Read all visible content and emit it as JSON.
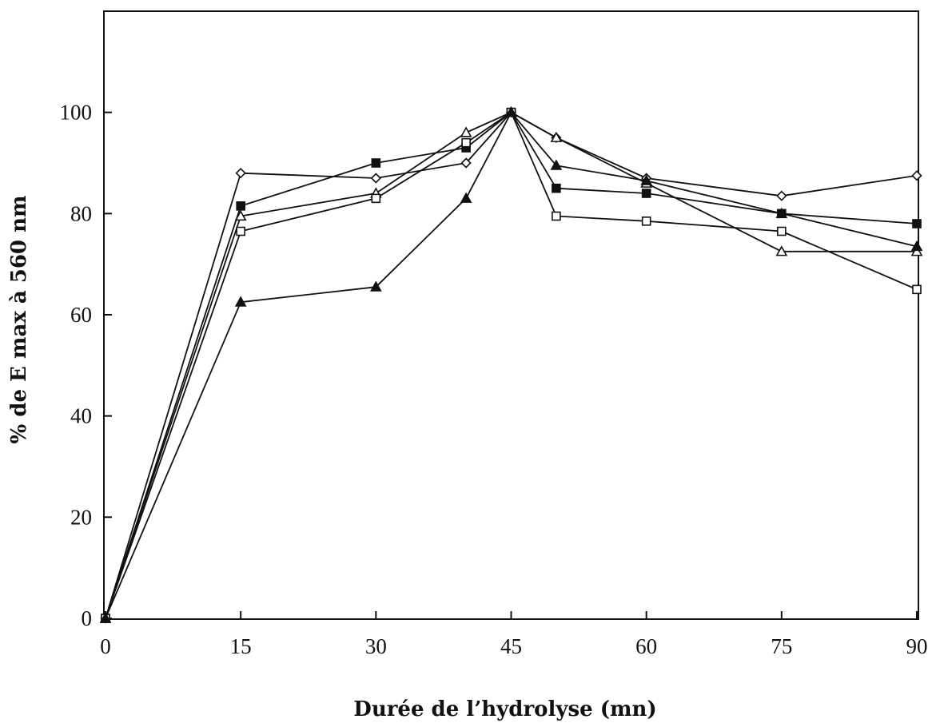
{
  "chart_data": {
    "type": "line",
    "title": "",
    "xlabel": "Durée de l’hydrolyse (mn)",
    "ylabel": "% de E max à 560 nm",
    "xlim": [
      0,
      90
    ],
    "ylim": [
      0,
      120
    ],
    "x_ticks": [
      0,
      15,
      30,
      45,
      60,
      75,
      90
    ],
    "y_ticks": [
      0,
      20,
      40,
      60,
      80,
      100
    ],
    "x_tick_labels": [
      "0",
      "15",
      "30",
      "45",
      "60",
      "75",
      "90"
    ],
    "y_tick_labels": [
      "0",
      "20",
      "40",
      "60",
      "80",
      "100"
    ],
    "grid": false,
    "legend": "none",
    "series": [
      {
        "marker": "open-diamond",
        "x": [
          0,
          15,
          30,
          40,
          45,
          50,
          60,
          75,
          90
        ],
        "y": [
          0,
          88,
          87,
          90,
          100,
          95,
          87,
          83.5,
          87.5
        ]
      },
      {
        "marker": "filled-square",
        "x": [
          0,
          15,
          30,
          40,
          45,
          50,
          60,
          75,
          90
        ],
        "y": [
          0,
          81.5,
          90,
          93,
          100,
          85,
          84,
          80,
          78
        ]
      },
      {
        "marker": "open-triangle",
        "x": [
          0,
          15,
          30,
          40,
          45,
          50,
          60,
          75,
          90
        ],
        "y": [
          0,
          79.5,
          84,
          96,
          100,
          95,
          86,
          72.5,
          72.5
        ]
      },
      {
        "marker": "open-square",
        "x": [
          0,
          15,
          30,
          40,
          45,
          50,
          60,
          75,
          90
        ],
        "y": [
          0,
          76.5,
          83,
          94,
          100,
          79.5,
          78.5,
          76.5,
          65
        ]
      },
      {
        "marker": "filled-triangle",
        "x": [
          0,
          15,
          30,
          40,
          45,
          50,
          60,
          75,
          90
        ],
        "y": [
          0,
          62.5,
          65.5,
          83,
          100,
          89.5,
          86.5,
          80,
          73.5
        ]
      }
    ]
  }
}
